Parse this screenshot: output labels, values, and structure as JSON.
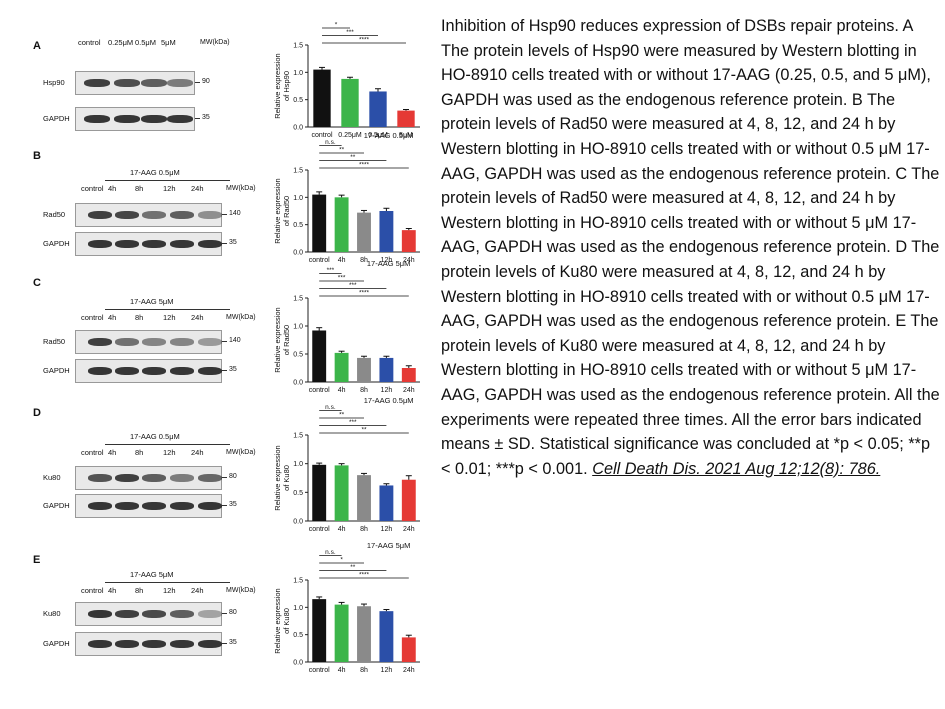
{
  "panels": [
    {
      "label": "A",
      "treatment": "",
      "lanes": [
        "control",
        "0.25μM",
        "0.5μM",
        "5μM"
      ],
      "mw_unit": "MW(kDa)",
      "rows": [
        {
          "name": "Hsp90",
          "mw": "90"
        },
        {
          "name": "GAPDH",
          "mw": "35"
        }
      ]
    },
    {
      "label": "B",
      "treatment": "17-AAG  0.5μM",
      "lanes": [
        "control",
        "4h",
        "8h",
        "12h",
        "24h"
      ],
      "mw_unit": "MW(kDa)",
      "rows": [
        {
          "name": "Rad50",
          "mw": "140"
        },
        {
          "name": "GAPDH",
          "mw": "35"
        }
      ]
    },
    {
      "label": "C",
      "treatment": "17-AAG  5μM",
      "lanes": [
        "control",
        "4h",
        "8h",
        "12h",
        "24h"
      ],
      "mw_unit": "MW(kDa)",
      "rows": [
        {
          "name": "Rad50",
          "mw": "140"
        },
        {
          "name": "GAPDH",
          "mw": "35"
        }
      ]
    },
    {
      "label": "D",
      "treatment": "17-AAG  0.5μM",
      "lanes": [
        "control",
        "4h",
        "8h",
        "12h",
        "24h"
      ],
      "mw_unit": "MW(kDa)",
      "rows": [
        {
          "name": "Ku80",
          "mw": "80"
        },
        {
          "name": "GAPDH",
          "mw": "35"
        }
      ]
    },
    {
      "label": "E",
      "treatment": "17-AAG  5μM",
      "lanes": [
        "control",
        "4h",
        "8h",
        "12h",
        "24h"
      ],
      "mw_unit": "MW(kDa)",
      "rows": [
        {
          "name": "Ku80",
          "mw": "80"
        },
        {
          "name": "GAPDH",
          "mw": "35"
        }
      ]
    }
  ],
  "chart_data": [
    {
      "type": "bar",
      "panel": "A",
      "categories": [
        "control",
        "0.25μM",
        "0.5μM",
        "5μM"
      ],
      "values": [
        1.05,
        0.88,
        0.65,
        0.3
      ],
      "errors": [
        0.04,
        0.03,
        0.05,
        0.02
      ],
      "colors": [
        "#111111",
        "#3cb54a",
        "#2b4fa8",
        "#e53935"
      ],
      "ylabel": "Relative expression of Hsp90",
      "ylim": [
        0,
        1.5
      ],
      "yticks": [
        "0.0",
        "0.5",
        "1.0",
        "1.5"
      ],
      "title": "",
      "significance": [
        {
          "from": 0,
          "to": 1,
          "label": "*"
        },
        {
          "from": 0,
          "to": 2,
          "label": "***"
        },
        {
          "from": 0,
          "to": 3,
          "label": "****"
        }
      ]
    },
    {
      "type": "bar",
      "panel": "B",
      "categories": [
        "control",
        "4h",
        "8h",
        "12h",
        "24h"
      ],
      "values": [
        1.05,
        1.0,
        0.72,
        0.75,
        0.4
      ],
      "errors": [
        0.05,
        0.04,
        0.04,
        0.05,
        0.03
      ],
      "colors": [
        "#111111",
        "#3cb54a",
        "#8a8a8a",
        "#2b4fa8",
        "#e53935"
      ],
      "ylabel": "Relative expression of Rad50",
      "ylim": [
        0,
        1.5
      ],
      "yticks": [
        "0.0",
        "0.5",
        "1.0",
        "1.5"
      ],
      "title": "17-AAG  0.5μM",
      "significance": [
        {
          "from": 0,
          "to": 1,
          "label": "n.s."
        },
        {
          "from": 0,
          "to": 2,
          "label": "**"
        },
        {
          "from": 0,
          "to": 3,
          "label": "**"
        },
        {
          "from": 0,
          "to": 4,
          "label": "****"
        }
      ]
    },
    {
      "type": "bar",
      "panel": "C",
      "categories": [
        "control",
        "4h",
        "8h",
        "12h",
        "24h"
      ],
      "values": [
        0.92,
        0.52,
        0.43,
        0.43,
        0.25
      ],
      "errors": [
        0.05,
        0.03,
        0.03,
        0.03,
        0.04
      ],
      "colors": [
        "#111111",
        "#3cb54a",
        "#8a8a8a",
        "#2b4fa8",
        "#e53935"
      ],
      "ylabel": "Relative expression of Rad50",
      "ylim": [
        0,
        1.5
      ],
      "yticks": [
        "0.0",
        "0.5",
        "1.0",
        "1.5"
      ],
      "title": "17-AAG  5μM",
      "significance": [
        {
          "from": 0,
          "to": 1,
          "label": "***"
        },
        {
          "from": 0,
          "to": 2,
          "label": "***"
        },
        {
          "from": 0,
          "to": 3,
          "label": "***"
        },
        {
          "from": 0,
          "to": 4,
          "label": "****"
        }
      ]
    },
    {
      "type": "bar",
      "panel": "D",
      "categories": [
        "control",
        "4h",
        "8h",
        "12h",
        "24h"
      ],
      "values": [
        0.98,
        0.97,
        0.8,
        0.62,
        0.72
      ],
      "errors": [
        0.03,
        0.03,
        0.03,
        0.03,
        0.07
      ],
      "colors": [
        "#111111",
        "#3cb54a",
        "#8a8a8a",
        "#2b4fa8",
        "#e53935"
      ],
      "ylabel": "Relative expression of Ku80",
      "ylim": [
        0,
        1.5
      ],
      "yticks": [
        "0.0",
        "0.5",
        "1.0",
        "1.5"
      ],
      "title": "17-AAG  0.5μM",
      "significance": [
        {
          "from": 0,
          "to": 1,
          "label": "n.s."
        },
        {
          "from": 0,
          "to": 2,
          "label": "**"
        },
        {
          "from": 0,
          "to": 3,
          "label": "***"
        },
        {
          "from": 0,
          "to": 4,
          "label": "**"
        }
      ]
    },
    {
      "type": "bar",
      "panel": "E",
      "categories": [
        "control",
        "4h",
        "8h",
        "12h",
        "24h"
      ],
      "values": [
        1.15,
        1.05,
        1.02,
        0.93,
        0.45
      ],
      "errors": [
        0.04,
        0.04,
        0.04,
        0.03,
        0.04
      ],
      "colors": [
        "#111111",
        "#3cb54a",
        "#8a8a8a",
        "#2b4fa8",
        "#e53935"
      ],
      "ylabel": "Relative expression of Ku80",
      "ylim": [
        0,
        1.5
      ],
      "yticks": [
        "0.0",
        "0.5",
        "1.0",
        "1.5"
      ],
      "title": "17-AAG  5μM",
      "significance": [
        {
          "from": 0,
          "to": 1,
          "label": "n.s."
        },
        {
          "from": 0,
          "to": 2,
          "label": "*"
        },
        {
          "from": 0,
          "to": 3,
          "label": "**"
        },
        {
          "from": 0,
          "to": 4,
          "label": "****"
        }
      ]
    }
  ],
  "caption": {
    "text": "Inhibition of Hsp90 reduces expression of DSBs repair proteins. A The protein levels of Hsp90 were measured by Western blotting in HO-8910 cells treated with or without 17-AAG (0.25, 0.5, and 5 μM), GAPDH was used as the endogenous reference protein. B The protein levels of Rad50 were measured at 4, 8, 12, and 24 h by Western blotting in HO-8910 cells treated with or without 0.5 μM 17-AAG, GAPDH was used as the endogenous reference protein. C The protein levels of Rad50 were measured at 4, 8, 12, and 24 h by Western blotting in HO-8910 cells treated with or without 5 μM 17-AAG, GAPDH was used as the endogenous reference protein. D The protein levels of Ku80 were measured at 4, 8, 12, and 24 h by Western blotting in HO-8910 cells treated with or without 0.5 μM 17-AAG, GAPDH was used as the endogenous reference protein. E The protein levels of Ku80 were measured at 4, 8, 12, and 24 h by Western blotting in HO-8910 cells treated with or without 5 μM 17-AAG, GAPDH was used as the endogenous reference protein. All the experiments were repeated three times. All the error bars indicated means ± SD. Statistical significance was concluded at *p < 0.05; **p < 0.01; ***p < 0.001. ",
    "citation": "Cell Death Dis. 2021 Aug 12;12(8): 786."
  }
}
